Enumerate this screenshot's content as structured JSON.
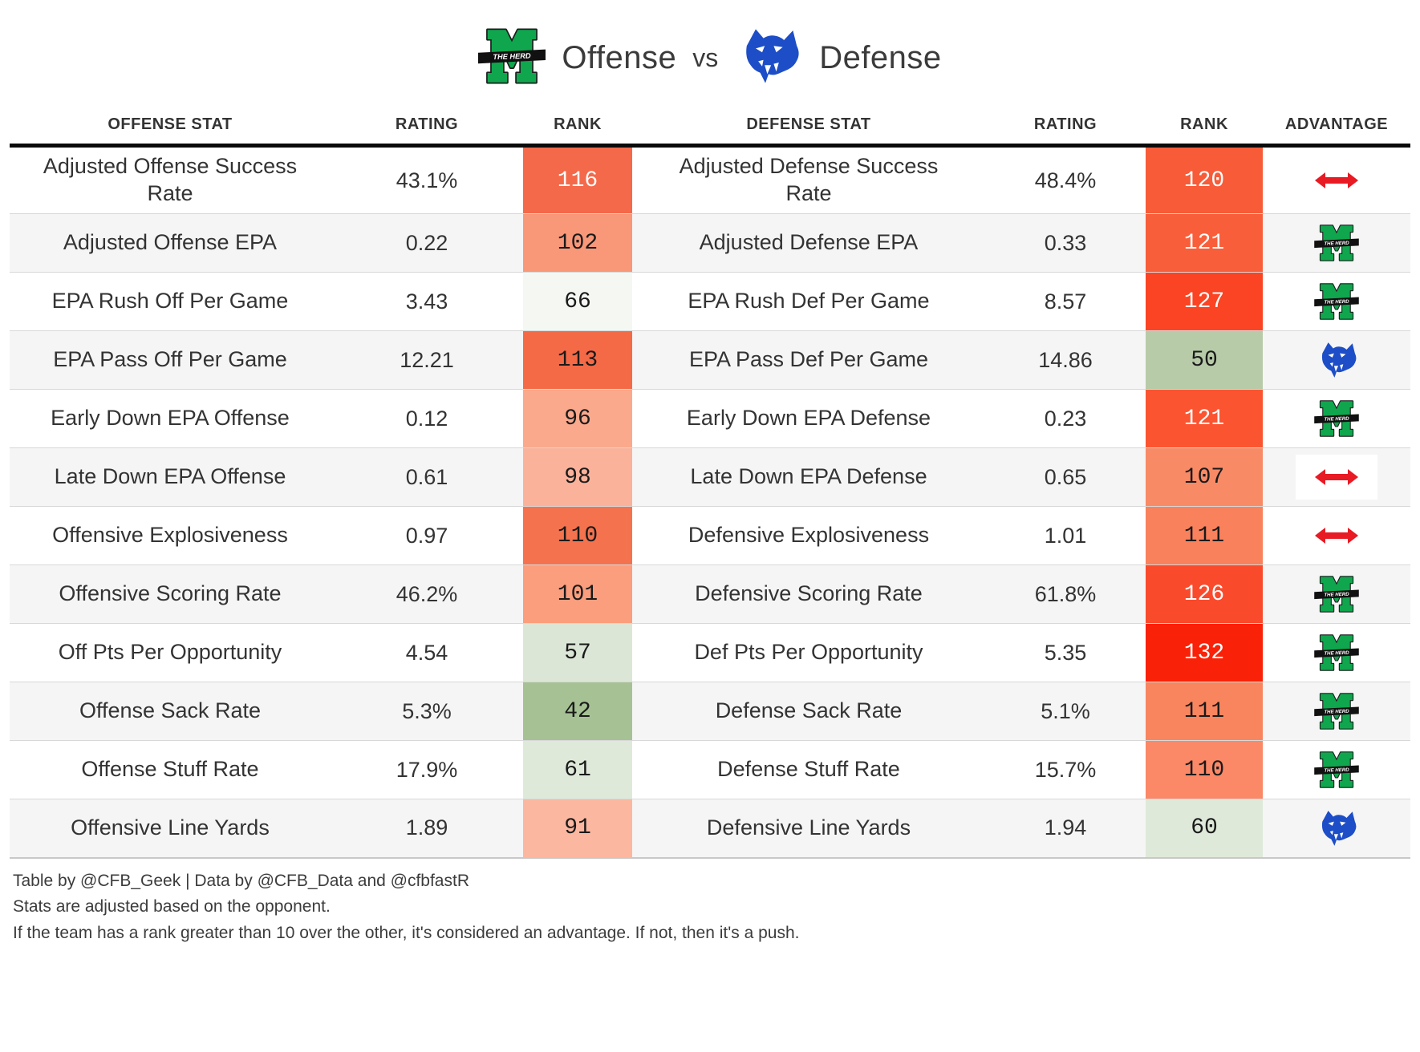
{
  "title": {
    "left_label": "Offense",
    "vs": "vs",
    "right_label": "Defense",
    "left_logo": "marshall-thundering-herd",
    "right_logo": "georgia-state-panthers"
  },
  "chart_data": {
    "type": "table",
    "title": "Marshall Offense vs Georgia State Defense",
    "columns": [
      "OFFENSE STAT",
      "RATING",
      "RANK",
      "DEFENSE STAT",
      "RATING",
      "RANK",
      "ADVANTAGE"
    ],
    "legend_note": "advantage values: marshall | georgia-state | push",
    "rows": [
      {
        "off_stat": "Adjusted Offense Success Rate",
        "off_rating": "43.1%",
        "off_rank": "116",
        "off_rank_bg": "#f4694a",
        "off_rank_fg": "#ffffff",
        "def_stat": "Adjusted Defense Success Rate",
        "def_rating": "48.4%",
        "def_rank": "120",
        "def_rank_bg": "#f75b38",
        "def_rank_fg": "#ffffff",
        "advantage": "push"
      },
      {
        "off_stat": "Adjusted Offense EPA",
        "off_rating": "0.22",
        "off_rank": "102",
        "off_rank_bg": "#f99879",
        "off_rank_fg": "#1a1a1a",
        "def_stat": "Adjusted Defense EPA",
        "def_rating": "0.33",
        "def_rank": "121",
        "def_rank_bg": "#f85e3a",
        "def_rank_fg": "#ffffff",
        "advantage": "marshall"
      },
      {
        "off_stat": "EPA Rush Off Per Game",
        "off_rating": "3.43",
        "off_rank": "66",
        "off_rank_bg": "#f5f8f2",
        "off_rank_fg": "#1a1a1a",
        "def_stat": "EPA Rush Def Per Game",
        "def_rating": "8.57",
        "def_rank": "127",
        "def_rank_bg": "#fb4423",
        "def_rank_fg": "#ffffff",
        "advantage": "marshall"
      },
      {
        "off_stat": "EPA Pass Off Per Game",
        "off_rating": "12.21",
        "off_rank": "113",
        "off_rank_bg": "#f56a46",
        "off_rank_fg": "#1a1a1a",
        "def_stat": "EPA Pass Def Per Game",
        "def_rating": "14.86",
        "def_rank": "50",
        "def_rank_bg": "#b7cba8",
        "def_rank_fg": "#1a1a1a",
        "advantage": "georgia-state"
      },
      {
        "off_stat": "Early Down EPA Offense",
        "off_rating": "0.12",
        "off_rank": "96",
        "off_rank_bg": "#faa98d",
        "off_rank_fg": "#1a1a1a",
        "def_stat": "Early Down EPA Defense",
        "def_rating": "0.23",
        "def_rank": "121",
        "def_rank_bg": "#fb5431",
        "def_rank_fg": "#ffffff",
        "advantage": "marshall"
      },
      {
        "off_stat": "Late Down EPA Offense",
        "off_rating": "0.61",
        "off_rank": "98",
        "off_rank_bg": "#fbb29b",
        "off_rank_fg": "#1a1a1a",
        "def_stat": "Late Down EPA Defense",
        "def_rating": "0.65",
        "def_rank": "107",
        "def_rank_bg": "#f98a66",
        "def_rank_fg": "#1a1a1a",
        "advantage": "push"
      },
      {
        "off_stat": "Offensive Explosiveness",
        "off_rating": "0.97",
        "off_rank": "110",
        "off_rank_bg": "#f4734e",
        "off_rank_fg": "#1a1a1a",
        "def_stat": "Defensive Explosiveness",
        "def_rating": "1.01",
        "def_rank": "111",
        "def_rank_bg": "#f9815c",
        "def_rank_fg": "#1a1a1a",
        "advantage": "push"
      },
      {
        "off_stat": "Offensive Scoring Rate",
        "off_rating": "46.2%",
        "off_rank": "101",
        "off_rank_bg": "#fa9e7d",
        "off_rank_fg": "#1a1a1a",
        "def_stat": "Defensive Scoring Rate",
        "def_rating": "61.8%",
        "def_rank": "126",
        "def_rank_bg": "#fa4a2c",
        "def_rank_fg": "#ffffff",
        "advantage": "marshall"
      },
      {
        "off_stat": "Off Pts Per Opportunity",
        "off_rating": "4.54",
        "off_rank": "57",
        "off_rank_bg": "#dce6d7",
        "off_rank_fg": "#1a1a1a",
        "def_stat": "Def Pts Per Opportunity",
        "def_rating": "5.35",
        "def_rank": "132",
        "def_rank_bg": "#f92107",
        "def_rank_fg": "#ffffff",
        "advantage": "marshall"
      },
      {
        "off_stat": "Offense Sack Rate",
        "off_rating": "5.3%",
        "off_rank": "42",
        "off_rank_bg": "#a6c295",
        "off_rank_fg": "#1a1a1a",
        "def_stat": "Defense Sack Rate",
        "def_rating": "5.1%",
        "def_rank": "111",
        "def_rank_bg": "#f9855f",
        "def_rank_fg": "#1a1a1a",
        "advantage": "marshall"
      },
      {
        "off_stat": "Offense Stuff Rate",
        "off_rating": "17.9%",
        "off_rank": "61",
        "off_rank_bg": "#dfe9da",
        "off_rank_fg": "#1a1a1a",
        "def_stat": "Defense Stuff Rate",
        "def_rating": "15.7%",
        "def_rank": "110",
        "def_rank_bg": "#fb8866",
        "def_rank_fg": "#1a1a1a",
        "advantage": "marshall"
      },
      {
        "off_stat": "Offensive Line Yards",
        "off_rating": "1.89",
        "off_rank": "91",
        "off_rank_bg": "#fcb7a0",
        "off_rank_fg": "#1a1a1a",
        "def_stat": "Defensive Line Yards",
        "def_rating": "1.94",
        "def_rank": "60",
        "def_rank_bg": "#dee9d9",
        "def_rank_fg": "#1a1a1a",
        "advantage": "georgia-state"
      }
    ]
  },
  "footnotes": [
    "Table by @CFB_Geek | Data by @CFB_Data and @cfbfastR",
    "Stats are adjusted based on the opponent.",
    "If the team has a rank greater than 10 over the other, it's considered an advantage. If not, then it's a push."
  ],
  "colors": {
    "push_arrow": "#e81a24",
    "marshall_green": "#0fa64e",
    "georgia_state_blue": "#1d4ec7",
    "header_border": "#0a0a0a",
    "row_stripe": "#f5f5f5"
  }
}
